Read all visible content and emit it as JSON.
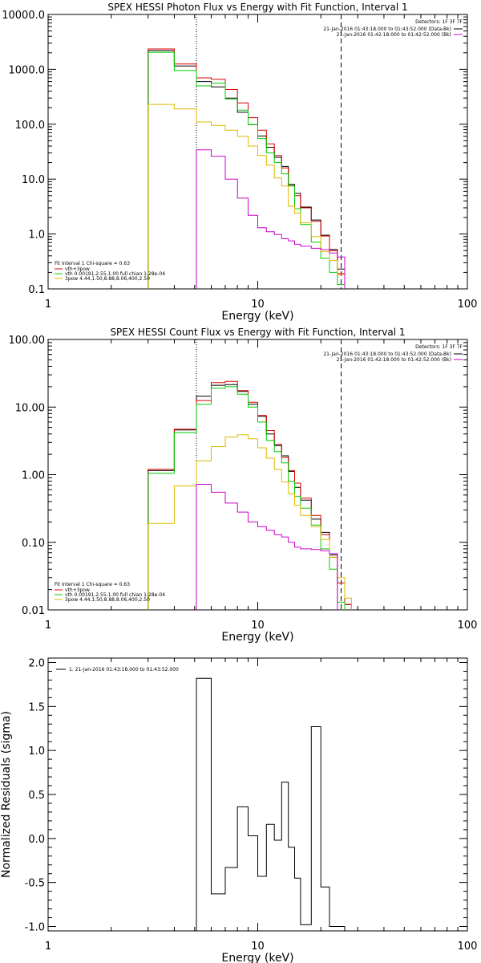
{
  "chart_data": [
    {
      "type": "line",
      "title": "SPEX HESSI Photon Flux vs Energy with Fit Function, Interval 1",
      "xlabel": "Energy (keV)",
      "ylabel": "",
      "xscale": "log",
      "yscale": "log",
      "xlim": [
        1,
        100
      ],
      "ylim": [
        0.1,
        10000
      ],
      "x_ticks": [
        "1",
        "10",
        "100"
      ],
      "y_ticks": [
        "0.1",
        "1.0",
        "10.0",
        "100.0",
        "1000.0",
        "10000.0"
      ],
      "vlines_keV": [
        {
          "x": 5.1,
          "style": "dotted"
        },
        {
          "x": 25.0,
          "style": "dashed"
        }
      ],
      "bin_edges": [
        3.0,
        4.0,
        5.1,
        6.0,
        7.0,
        8.0,
        9.0,
        10.0,
        11.0,
        12.0,
        13.0,
        14.0,
        15.0,
        16.0,
        18.0,
        20.0,
        22.0,
        24.0,
        26.0
      ],
      "series": [
        {
          "name": "",
          "color": "#000000",
          "values": [
            2200,
            1150,
            600,
            480,
            300,
            165,
            98,
            61,
            38,
            25,
            17,
            8.0,
            5.5,
            3.1,
            1.8,
            0.95,
            0.52,
            0.23
          ]
        },
        {
          "name": "vth+3pow",
          "color": "#dd0000",
          "values": [
            2350,
            1250,
            700,
            660,
            430,
            245,
            132,
            78,
            44,
            27,
            16,
            7.6,
            5.0,
            3.0,
            1.7,
            0.92,
            0.5,
            0.19
          ]
        },
        {
          "name": "vth 0.00191,2.55,1.00 full chian 1.28e-04",
          "color": "#00cc00",
          "values": [
            2050,
            950,
            500,
            560,
            290,
            180,
            98,
            55,
            30,
            20,
            12.5,
            7.5,
            2.9,
            1.5,
            0.71,
            0.36,
            0.2,
            0.12
          ]
        },
        {
          "name": "3pow 4.44,1.50,8.88,8.06,400,2.50",
          "color": "#ddbb00",
          "values": [
            230,
            190,
            110,
            95,
            78,
            60,
            40,
            27,
            18,
            10.5,
            7.5,
            3.2,
            2.4,
            1.6,
            0.9,
            0.48,
            0.33,
            0.18
          ]
        },
        {
          "name": "",
          "color": "#cc00cc",
          "values": [
            null,
            null,
            34,
            26,
            10,
            4.5,
            2.2,
            1.3,
            1.1,
            0.98,
            0.82,
            0.75,
            0.65,
            0.6,
            0.55,
            0.52,
            0.45,
            0.38
          ]
        }
      ]
    },
    {
      "type": "line",
      "title": "SPEX HESSI Count Flux vs Energy with Fit Function, Interval 1",
      "xlabel": "Energy (keV)",
      "ylabel": "",
      "xscale": "log",
      "yscale": "log",
      "xlim": [
        1,
        100
      ],
      "ylim": [
        0.01,
        100
      ],
      "x_ticks": [
        "1",
        "10",
        "100"
      ],
      "y_ticks": [
        "0.01",
        "0.10",
        "1.00",
        "10.00",
        "100.00"
      ],
      "vlines_keV": [
        {
          "x": 5.1,
          "style": "dotted"
        },
        {
          "x": 25.0,
          "style": "dashed"
        }
      ],
      "bin_edges": [
        3.0,
        4.0,
        5.1,
        6.0,
        7.0,
        8.0,
        9.0,
        10.0,
        11.0,
        12.0,
        13.0,
        14.0,
        15.0,
        16.0,
        18.0,
        20.0,
        22.0,
        24.0,
        26.0,
        28.0
      ],
      "series": [
        {
          "name": "",
          "color": "#000000",
          "values": [
            1.15,
            4.6,
            14.5,
            21,
            21.5,
            17,
            11,
            7.3,
            4.0,
            2.7,
            1.9,
            1.12,
            0.65,
            0.42,
            0.22,
            0.14,
            0.065,
            0.025,
            0.012
          ]
        },
        {
          "name": "vth+3pow",
          "color": "#dd0000",
          "values": [
            1.2,
            4.7,
            12.5,
            23,
            24,
            17.5,
            11.8,
            7.5,
            4.5,
            2.8,
            1.8,
            1.15,
            0.75,
            0.45,
            0.25,
            0.13,
            0.06,
            0.025,
            0.012
          ]
        },
        {
          "name": "vth 0.00191,2.55,1.00 full chian 1.28e-04",
          "color": "#00cc00",
          "values": [
            1.05,
            4.2,
            11,
            19,
            20,
            15.5,
            10,
            6.0,
            3.2,
            2.2,
            1.5,
            0.8,
            0.48,
            0.32,
            0.18,
            0.08,
            0.04,
            0.013,
            null
          ]
        },
        {
          "name": "3pow 4.44,1.50,8.88,8.06,400,2.50",
          "color": "#ddbb00",
          "values": [
            0.19,
            0.68,
            1.6,
            2.6,
            3.6,
            3.9,
            3.4,
            2.5,
            1.75,
            1.2,
            0.78,
            0.52,
            0.35,
            0.25,
            0.17,
            0.11,
            0.06,
            0.03,
            0.015
          ]
        },
        {
          "name": "",
          "color": "#cc00cc",
          "values": [
            null,
            null,
            0.72,
            0.55,
            0.38,
            0.28,
            0.2,
            0.17,
            0.15,
            0.13,
            0.12,
            0.1,
            0.085,
            0.08,
            0.078,
            0.075,
            0.068,
            null,
            null
          ]
        }
      ]
    },
    {
      "type": "line",
      "title": "",
      "xlabel": "Energy (keV)",
      "ylabel": "Normalized Residuals (sigma)",
      "xscale": "log",
      "xlim": [
        1,
        100
      ],
      "ylim": [
        -1.05,
        2.05
      ],
      "x_ticks": [
        "1",
        "10",
        "100"
      ],
      "y_ticks": [
        "-1.0",
        "-0.5",
        "0.0",
        "0.5",
        "1.0",
        "1.5",
        "2.0"
      ],
      "bin_edges": [
        5.1,
        6.0,
        7.0,
        8.0,
        9.0,
        10.0,
        11.0,
        12.0,
        13.0,
        14.0,
        15.0,
        16.0,
        18.0,
        20.0,
        22.0,
        24.0,
        26.0
      ],
      "series": [
        {
          "name": "1. 21-Jan-2016 01:43:18.000 to 01:43:52.000",
          "color": "#000000",
          "values": [
            1.82,
            -0.63,
            -0.33,
            0.36,
            0.03,
            -0.43,
            0.16,
            -0.02,
            0.64,
            -0.1,
            -0.45,
            -0.98,
            1.27,
            -0.55,
            -1.0,
            -1.0
          ]
        }
      ]
    }
  ],
  "legends": {
    "top_right": {
      "detectors": "Detectors: 1F 3F 7F",
      "intervals": [
        {
          "label": "21-Jan-2016 01:43:18.000 to 01:43:52.000 (Data-Bk)",
          "color": "#000000"
        },
        {
          "label": "21-Jan-2016 01:42:18.000 to 01:42:52.000 (Bk)",
          "color": "#cc00cc"
        }
      ]
    },
    "fit": {
      "header": "Fit Interval 1    Chi-square = 0.63"
    }
  }
}
